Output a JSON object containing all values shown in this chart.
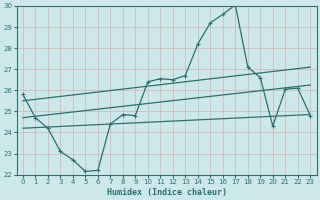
{
  "xlabel": "Humidex (Indice chaleur)",
  "xlim": [
    -0.5,
    23.5
  ],
  "ylim": [
    22,
    30
  ],
  "xticks": [
    0,
    1,
    2,
    3,
    4,
    5,
    6,
    7,
    8,
    9,
    10,
    11,
    12,
    13,
    14,
    15,
    16,
    17,
    18,
    19,
    20,
    21,
    22,
    23
  ],
  "yticks": [
    22,
    23,
    24,
    25,
    26,
    27,
    28,
    29,
    30
  ],
  "bg_color": "#cde8ea",
  "grid_color": "#b0d0d4",
  "line_color": "#2a7070",
  "main_x": [
    0,
    1,
    2,
    3,
    4,
    5,
    6,
    7,
    8,
    9,
    10,
    11,
    12,
    13,
    14,
    15,
    16,
    17,
    18,
    19,
    20,
    21,
    22,
    23
  ],
  "main_y": [
    25.8,
    24.7,
    24.2,
    23.1,
    22.7,
    22.15,
    22.2,
    24.4,
    24.85,
    24.8,
    26.4,
    26.55,
    26.5,
    26.7,
    28.2,
    29.2,
    29.6,
    30.05,
    27.1,
    26.6,
    24.3,
    26.05,
    26.1,
    24.8
  ],
  "upper_trend_x": [
    0,
    23
  ],
  "upper_trend_y": [
    25.5,
    27.1
  ],
  "lower_trend_x": [
    0,
    23
  ],
  "lower_trend_y": [
    24.2,
    24.85
  ],
  "mid_trend_x": [
    0,
    23
  ],
  "mid_trend_y": [
    24.7,
    26.25
  ]
}
